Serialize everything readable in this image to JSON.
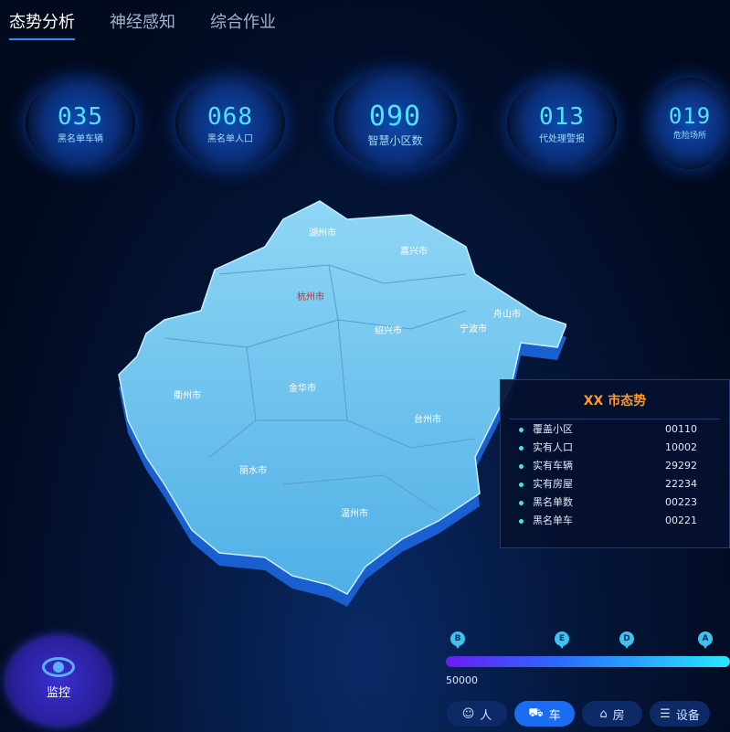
{
  "tabs": [
    "态势分析",
    "神经感知",
    "综合作业"
  ],
  "stats": [
    {
      "value": "035",
      "label": "黑名单车辆"
    },
    {
      "value": "068",
      "label": "黑名单人口"
    },
    {
      "value": "090",
      "label": "智慧小区数"
    },
    {
      "value": "013",
      "label": "代处理警报"
    },
    {
      "value": "019",
      "label": "危险场所"
    }
  ],
  "map": {
    "cities": [
      "湖州市",
      "嘉兴市",
      "杭州市",
      "绍兴市",
      "宁波市",
      "舟山市",
      "衢州市",
      "金华市",
      "台州市",
      "丽水市",
      "温州市"
    ],
    "highlight_city": "杭州市",
    "highlight_color": "#e02020"
  },
  "panel": {
    "title": "XX 市态势",
    "rows": [
      {
        "label": "覆盖小区",
        "value": "00110"
      },
      {
        "label": "实有人口",
        "value": "10002"
      },
      {
        "label": "实有车辆",
        "value": "29292"
      },
      {
        "label": "实有房屋",
        "value": "22234"
      },
      {
        "label": "黑名单数",
        "value": "00223"
      },
      {
        "label": "黑名单车",
        "value": "00221"
      }
    ]
  },
  "monitor": {
    "label": "监控",
    "icon": "eye-icon"
  },
  "timeline": {
    "markers": [
      "B",
      "E",
      "D",
      "A"
    ],
    "value_label": "50000"
  },
  "filters": [
    {
      "label": "人",
      "icon": "person-icon"
    },
    {
      "label": "车",
      "icon": "car-icon",
      "active": true
    },
    {
      "label": "房",
      "icon": "house-icon"
    },
    {
      "label": "设备",
      "icon": "device-icon"
    }
  ]
}
